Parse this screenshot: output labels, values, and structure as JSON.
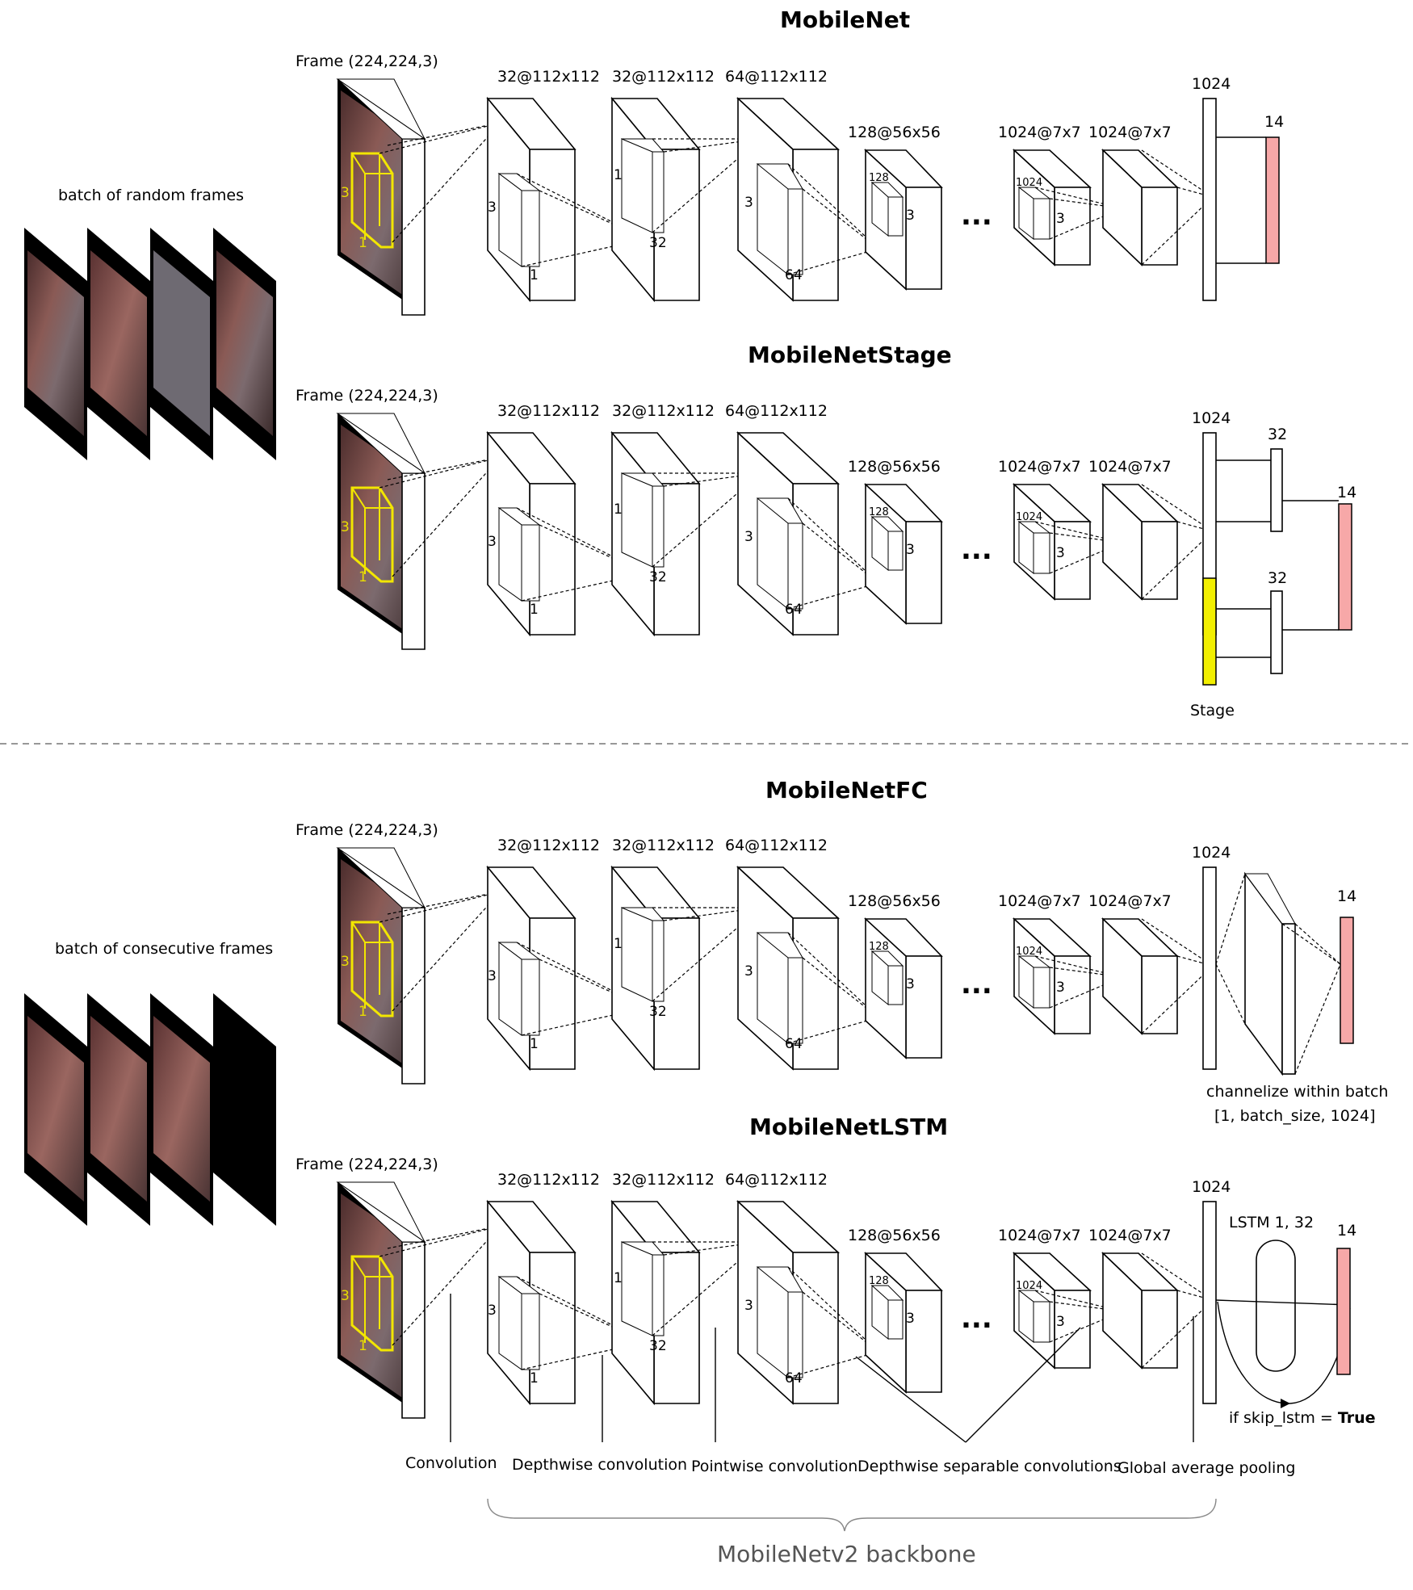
{
  "left_panel": {
    "random_label": "batch of random frames",
    "consecutive_label": "batch of consecutive frames"
  },
  "frame_label": "Frame (224,224,3)",
  "kernel_labels": {
    "k3": "3",
    "k1": "1",
    "c32": "32",
    "c64": "64",
    "c128": "128",
    "c1024": "1024"
  },
  "layer_labels": [
    "32@112x112",
    "32@112x112",
    "64@112x112",
    "128@56x56",
    "1024@7x7",
    "1024@7x7"
  ],
  "ellipsis": "...",
  "fc_1024": "1024",
  "out_14": "14",
  "models": [
    {
      "title": "MobileNet"
    },
    {
      "title": "MobileNetStage",
      "fc_32_a": "32",
      "fc_32_b": "32",
      "stage_label": "Stage"
    },
    {
      "title": "MobileNetFC",
      "channelize_1": "channelize within batch",
      "channelize_2": "[1, batch_size, 1024]"
    },
    {
      "title": "MobileNetLSTM",
      "lstm_label": "LSTM 1, 32",
      "skip_prefix": "if skip_lstm = ",
      "skip_value": "True"
    }
  ],
  "legend": {
    "convolution": "Convolution",
    "depthwise": "Depthwise convolution",
    "pointwise": "Pointwise convolution",
    "separable": "Depthwise separable convolutions",
    "gap": "Global average pooling",
    "backbone": "MobileNetv2 backbone"
  },
  "colors": {
    "output": "#f7a8a8",
    "stage": "#f2ef00",
    "kernel_highlight": "#f2e600",
    "frame_image": "#6b4a4a"
  }
}
